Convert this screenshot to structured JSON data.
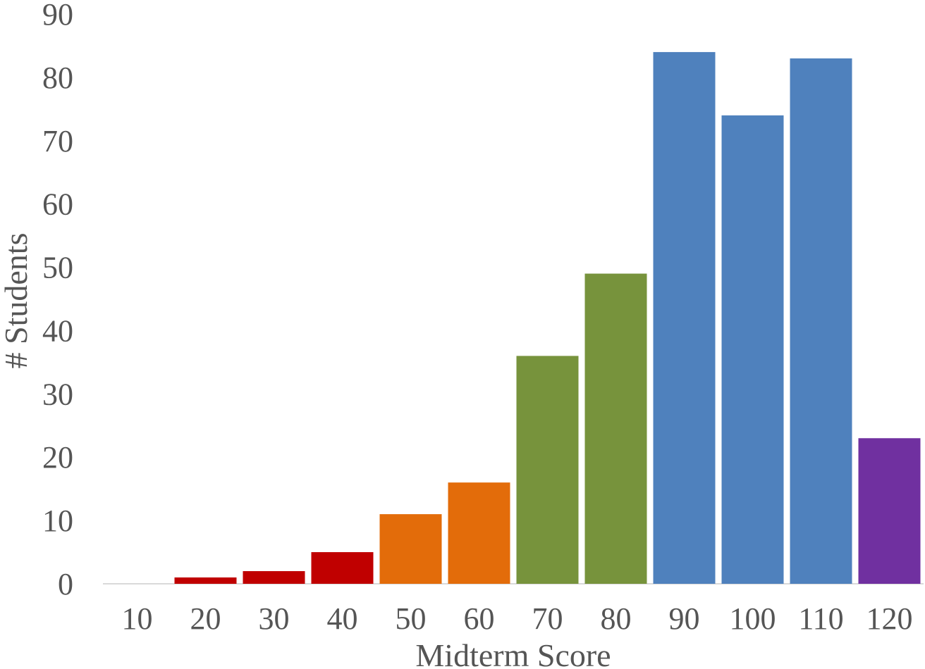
{
  "chart_data": {
    "type": "bar",
    "title": "",
    "xlabel": "Midterm Score",
    "ylabel": "# Students",
    "categories": [
      "10",
      "20",
      "30",
      "40",
      "50",
      "60",
      "70",
      "80",
      "90",
      "100",
      "110",
      "120"
    ],
    "values": [
      0,
      1,
      2,
      5,
      11,
      16,
      36,
      49,
      84,
      74,
      83,
      23
    ],
    "bar_colors": [
      "#C00000",
      "#C00000",
      "#C00000",
      "#C00000",
      "#E36C0A",
      "#E36C0A",
      "#77933C",
      "#77933C",
      "#4F81BD",
      "#4F81BD",
      "#4F81BD",
      "#7030A0"
    ],
    "ylim": [
      0,
      90
    ],
    "yticks": [
      "0",
      "10",
      "20",
      "30",
      "40",
      "50",
      "60",
      "70",
      "80",
      "90"
    ],
    "grid": false,
    "legend": "none"
  }
}
